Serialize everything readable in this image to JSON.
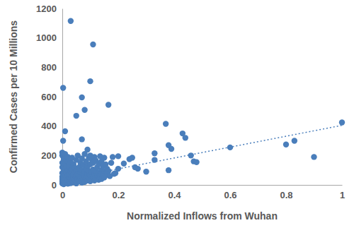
{
  "chart_data": {
    "type": "scatter",
    "x_label": "Normalized Inflows from Wuhan",
    "y_label": "Confirmed Cases per 10 Millions",
    "xlim": [
      0,
      1
    ],
    "xticks": [
      0,
      0.2,
      0.4,
      0.6,
      0.8,
      1
    ],
    "ylim": [
      0,
      1200
    ],
    "yticks": [
      0,
      200,
      400,
      600,
      800,
      1000,
      1200
    ],
    "grid": false,
    "series": [
      {
        "type": "scatter",
        "marker": "circle",
        "color": "#4a7ebb",
        "x": [
          0,
          0,
          0,
          0,
          0,
          0,
          0,
          0,
          0,
          0.005,
          0.005,
          0.005,
          0.005,
          0.005,
          0.01,
          0.01,
          0.01,
          0.01,
          0.01,
          0.01,
          0.015,
          0.015,
          0.015,
          0.015,
          0.015,
          0.02,
          0.02,
          0.02,
          0.02,
          0.02,
          0.025,
          0.025,
          0.025,
          0.025,
          0.03,
          0.03,
          0.03,
          0.03,
          0.035,
          0.035,
          0.035,
          0.035,
          0.04,
          0.04,
          0.04,
          0.04,
          0.045,
          0.045,
          0.045,
          0.05,
          0.05,
          0.05,
          0.05,
          0.055,
          0.055,
          0.055,
          0.06,
          0.06,
          0.06,
          0.065,
          0.065,
          0.065,
          0.07,
          0.07,
          0.07,
          0.07,
          0.075,
          0.075,
          0.075,
          0.08,
          0.08,
          0.08,
          0.08,
          0.085,
          0.085,
          0.085,
          0.09,
          0.09,
          0.09,
          0.09,
          0.095,
          0.095,
          0.095,
          0.1,
          0.1,
          0.1,
          0.1,
          0.105,
          0.105,
          0.105,
          0.11,
          0.11,
          0.11,
          0.115,
          0.115,
          0.115,
          0.12,
          0.12,
          0.12,
          0.125,
          0.125,
          0.13,
          0.13,
          0.13,
          0.135,
          0.135,
          0.14,
          0.14,
          0.14,
          0.145,
          0.145,
          0.15,
          0.15,
          0.15,
          0.155,
          0.155,
          0.16,
          0.16,
          0.165,
          0.17,
          0.175,
          0.18,
          0.03,
          0.11,
          0.003,
          0.1,
          0.07,
          0.08,
          0.05,
          0.165,
          0.01,
          0.003,
          0.07,
          0.37,
          0.43,
          0.44,
          0.46,
          0.47,
          0.48,
          0.6,
          0.8,
          0.83,
          0.9,
          1,
          0.38,
          0.38,
          0.39,
          0.33,
          0.33,
          0.3,
          0.25,
          0.24,
          0.22,
          0.2,
          0.27,
          0.26,
          0.2,
          0.19,
          0.185
        ],
        "values": [
          10,
          25,
          40,
          55,
          80,
          120,
          150,
          200,
          220,
          5,
          30,
          60,
          95,
          175,
          15,
          45,
          70,
          110,
          140,
          210,
          20,
          50,
          85,
          125,
          165,
          8,
          35,
          65,
          100,
          190,
          22,
          55,
          78,
          130,
          12,
          42,
          90,
          155,
          28,
          60,
          105,
          185,
          18,
          48,
          72,
          140,
          35,
          88,
          115,
          10,
          58,
          95,
          170,
          40,
          75,
          200,
          25,
          62,
          120,
          45,
          85,
          150,
          15,
          55,
          100,
          180,
          35,
          70,
          135,
          20,
          60,
          90,
          210,
          45,
          110,
          160,
          30,
          75,
          125,
          240,
          50,
          95,
          185,
          25,
          65,
          140,
          200,
          40,
          85,
          175,
          55,
          105,
          150,
          30,
          70,
          190,
          45,
          95,
          165,
          60,
          120,
          35,
          80,
          145,
          55,
          195,
          40,
          100,
          160,
          70,
          130,
          50,
          90,
          185,
          65,
          140,
          75,
          110,
          95,
          60,
          150,
          190,
          1115,
          955,
          660,
          705,
          595,
          510,
          470,
          545,
          365,
          300,
          310,
          415,
          350,
          320,
          200,
          160,
          155,
          255,
          275,
          300,
          190,
          425,
          270,
          100,
          245,
          215,
          170,
          90,
          185,
          175,
          145,
          195,
          110,
          120,
          110,
          80,
          75
        ]
      },
      {
        "type": "line",
        "line_style": "dotted",
        "color": "#4a7ebb",
        "x": [
          0,
          1
        ],
        "values": [
          35,
          405
        ]
      }
    ]
  }
}
